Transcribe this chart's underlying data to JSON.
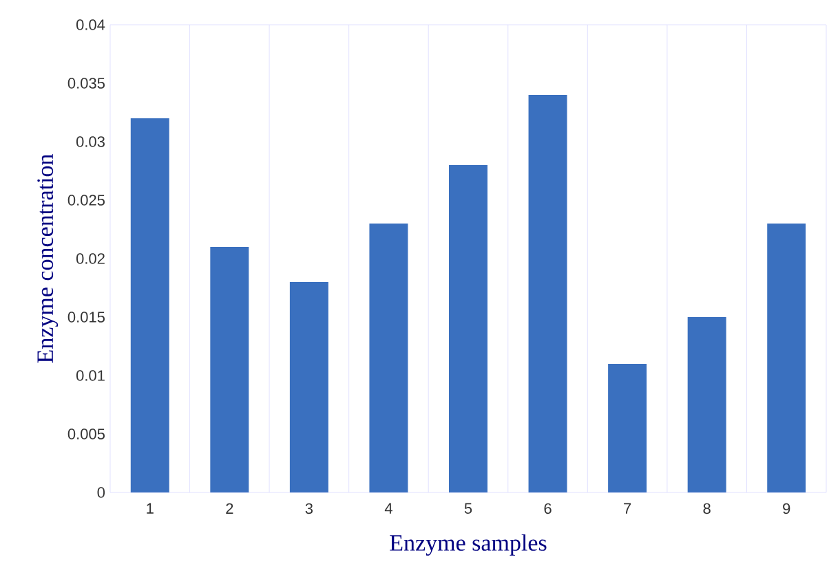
{
  "chart_data": {
    "type": "bar",
    "xlabel": "Enzyme samples",
    "ylabel": "Enzyme concentration",
    "categories": [
      "1",
      "2",
      "3",
      "4",
      "5",
      "6",
      "7",
      "8",
      "9"
    ],
    "values": [
      0.032,
      0.021,
      0.018,
      0.023,
      0.028,
      0.034,
      0.011,
      0.015,
      0.023
    ],
    "color": "#3a70bf",
    "ylim": [
      0,
      0.04
    ],
    "yticks": [
      0,
      0.005,
      0.01,
      0.015,
      0.02,
      0.025,
      0.03,
      0.035,
      0.04
    ],
    "grid": "x"
  }
}
